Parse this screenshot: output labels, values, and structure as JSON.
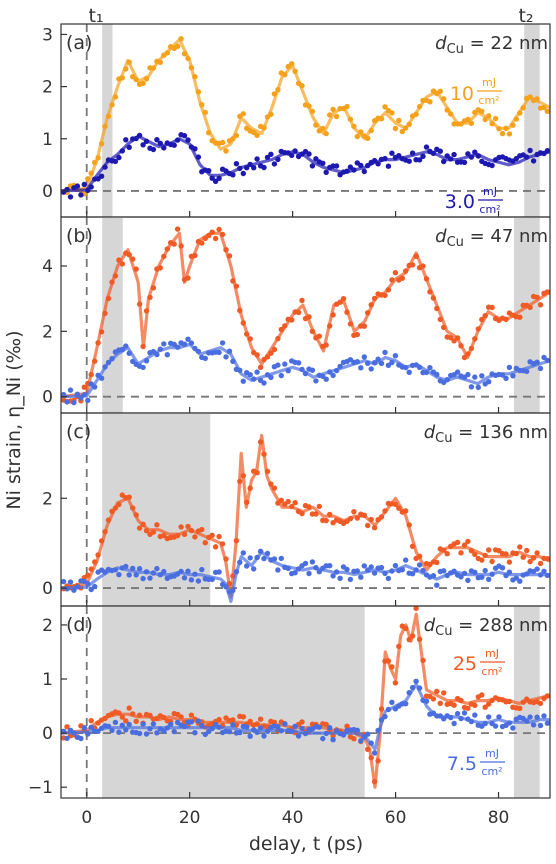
{
  "figure": {
    "xlabel": "delay, t (ps)",
    "ylabel": "Ni strain, η_Ni (‰)",
    "marker_t1": "t₁",
    "marker_t2": "t₂",
    "xlim": [
      -5,
      90
    ],
    "xticks": [
      0,
      20,
      40,
      60,
      80
    ]
  },
  "chart_data": [
    {
      "type": "line",
      "label": "(a)",
      "thickness": "d_Cu = 22 nm",
      "ylim": [
        -0.5,
        3.2
      ],
      "yticks": [
        0,
        1,
        2,
        3
      ],
      "shaded": [
        [
          3,
          5
        ],
        [
          85,
          88
        ]
      ],
      "series": [
        {
          "fluence_value": "10",
          "fluence_unit_num": "mJ",
          "fluence_unit_den": "cm²",
          "color": "#f5a11c",
          "x": [
            -5,
            0,
            2,
            4,
            6,
            8,
            10,
            12,
            14,
            16,
            18,
            20,
            22,
            24,
            26,
            28,
            30,
            32,
            34,
            36,
            38,
            40,
            42,
            44,
            46,
            48,
            50,
            52,
            54,
            56,
            58,
            60,
            62,
            64,
            66,
            68,
            70,
            72,
            74,
            76,
            78,
            80,
            82,
            84,
            86,
            88,
            90
          ],
          "y": [
            0,
            0.05,
            0.6,
            1.4,
            2.0,
            2.5,
            2.1,
            2.2,
            2.5,
            2.7,
            2.9,
            2.5,
            1.7,
            1.1,
            0.8,
            0.9,
            1.4,
            1.2,
            1.1,
            1.6,
            2.2,
            2.4,
            1.9,
            1.4,
            1.1,
            1.5,
            1.6,
            1.2,
            1.0,
            1.3,
            1.5,
            1.3,
            1.2,
            1.5,
            1.8,
            1.9,
            1.6,
            1.3,
            1.3,
            1.5,
            1.4,
            1.2,
            1.2,
            1.5,
            1.8,
            1.7,
            1.6
          ]
        },
        {
          "fluence_value": "3.0",
          "fluence_unit_num": "mJ",
          "fluence_unit_den": "cm²",
          "color": "#1c18b0",
          "x": [
            -5,
            0,
            2,
            4,
            6,
            8,
            10,
            12,
            14,
            16,
            18,
            20,
            22,
            24,
            26,
            28,
            30,
            32,
            34,
            36,
            38,
            40,
            42,
            44,
            46,
            48,
            50,
            52,
            54,
            56,
            58,
            60,
            62,
            64,
            66,
            68,
            70,
            72,
            74,
            76,
            78,
            80,
            82,
            84,
            86,
            88,
            90
          ],
          "y": [
            0,
            0.02,
            0.3,
            0.55,
            0.7,
            0.9,
            1.05,
            0.95,
            0.85,
            0.9,
            1.0,
            0.9,
            0.5,
            0.3,
            0.3,
            0.35,
            0.45,
            0.5,
            0.55,
            0.6,
            0.7,
            0.75,
            0.7,
            0.55,
            0.45,
            0.4,
            0.35,
            0.4,
            0.45,
            0.55,
            0.6,
            0.6,
            0.65,
            0.7,
            0.75,
            0.7,
            0.6,
            0.6,
            0.65,
            0.7,
            0.6,
            0.55,
            0.5,
            0.55,
            0.65,
            0.7,
            0.75
          ]
        }
      ]
    },
    {
      "type": "line",
      "label": "(b)",
      "thickness": "d_Cu = 47 nm",
      "ylim": [
        -0.5,
        5.5
      ],
      "yticks": [
        0,
        2,
        4
      ],
      "shaded": [
        [
          3,
          7
        ],
        [
          83,
          88
        ]
      ],
      "series": [
        {
          "color": "#f05a24",
          "x": [
            -5,
            0,
            2,
            4,
            6,
            8,
            10,
            11,
            12,
            14,
            16,
            18,
            19,
            20,
            22,
            24,
            26,
            28,
            30,
            32,
            34,
            36,
            38,
            40,
            42,
            44,
            46,
            48,
            50,
            52,
            54,
            56,
            58,
            60,
            62,
            64,
            66,
            68,
            70,
            72,
            74,
            76,
            78,
            80,
            82,
            84,
            86,
            88,
            90
          ],
          "y": [
            0,
            0.1,
            1.5,
            3.0,
            4.0,
            4.5,
            3.5,
            1.5,
            3.0,
            4.0,
            4.6,
            5.0,
            3.5,
            4.0,
            4.8,
            5.0,
            5.0,
            4.0,
            2.5,
            1.5,
            1.0,
            1.5,
            2.0,
            2.5,
            2.8,
            2.0,
            1.4,
            2.8,
            2.9,
            2.0,
            2.3,
            3.0,
            3.2,
            3.6,
            3.8,
            4.4,
            3.6,
            2.8,
            2.0,
            1.8,
            1.2,
            2.0,
            2.6,
            2.4,
            2.4,
            2.6,
            2.8,
            3.0,
            3.2
          ]
        },
        {
          "color": "#4a6ee0",
          "x": [
            -5,
            0,
            2,
            4,
            6,
            8,
            10,
            12,
            14,
            16,
            18,
            20,
            22,
            24,
            26,
            28,
            30,
            32,
            34,
            36,
            38,
            40,
            42,
            44,
            46,
            48,
            50,
            52,
            54,
            56,
            58,
            60,
            62,
            64,
            66,
            68,
            70,
            72,
            74,
            76,
            78,
            80,
            82,
            84,
            86,
            88,
            90
          ],
          "y": [
            0,
            0.02,
            0.5,
            1.0,
            1.3,
            1.5,
            1.0,
            1.2,
            1.4,
            1.5,
            1.5,
            1.6,
            1.3,
            1.4,
            1.5,
            1.3,
            0.7,
            0.5,
            0.6,
            0.7,
            0.8,
            0.9,
            0.8,
            0.6,
            0.7,
            0.8,
            0.9,
            1.0,
            1.1,
            1.0,
            1.2,
            1.1,
            0.9,
            1.0,
            0.8,
            0.6,
            0.5,
            0.6,
            0.5,
            0.4,
            0.6,
            0.7,
            0.7,
            0.8,
            0.9,
            1.0,
            1.1
          ]
        }
      ]
    },
    {
      "type": "line",
      "label": "(c)",
      "thickness": "d_Cu = 136 nm",
      "ylim": [
        -0.4,
        3.9
      ],
      "yticks": [
        0,
        2
      ],
      "shaded": [
        [
          3,
          24
        ]
      ],
      "series": [
        {
          "color": "#f05a24",
          "x": [
            -5,
            0,
            2,
            4,
            6,
            8,
            10,
            12,
            14,
            16,
            18,
            20,
            22,
            24,
            26,
            27,
            28,
            29,
            30,
            31,
            32,
            33,
            34,
            35,
            36,
            38,
            40,
            42,
            44,
            46,
            48,
            50,
            52,
            54,
            56,
            58,
            60,
            62,
            64,
            66,
            68,
            70,
            72,
            74,
            76,
            78,
            80,
            82,
            84,
            86,
            88,
            90
          ],
          "y": [
            0,
            0.1,
            0.6,
            1.4,
            1.9,
            2.0,
            1.5,
            1.3,
            1.3,
            1.2,
            1.2,
            1.3,
            1.2,
            1.1,
            1.0,
            0.6,
            -0.2,
            1.0,
            3.0,
            1.8,
            2.4,
            2.6,
            3.4,
            2.5,
            2.2,
            1.8,
            1.8,
            1.7,
            1.8,
            1.6,
            1.6,
            1.5,
            1.6,
            1.6,
            1.4,
            1.7,
            2.0,
            1.6,
            0.8,
            0.4,
            0.7,
            0.9,
            0.9,
            0.9,
            0.8,
            0.7,
            0.7,
            0.7,
            0.8,
            0.7,
            0.7,
            0.6
          ]
        },
        {
          "color": "#4a6ee0",
          "x": [
            -5,
            0,
            2,
            4,
            6,
            8,
            10,
            12,
            14,
            16,
            18,
            20,
            22,
            24,
            26,
            27,
            28,
            29,
            30,
            32,
            34,
            36,
            38,
            40,
            42,
            44,
            46,
            48,
            50,
            52,
            54,
            56,
            58,
            60,
            62,
            64,
            66,
            68,
            70,
            72,
            74,
            76,
            78,
            80,
            82,
            84,
            86,
            88,
            90
          ],
          "y": [
            0,
            0.02,
            0.2,
            0.35,
            0.45,
            0.4,
            0.35,
            0.35,
            0.3,
            0.3,
            0.35,
            0.3,
            0.3,
            0.25,
            0.2,
            0.1,
            -0.3,
            0.3,
            0.7,
            0.5,
            0.8,
            0.6,
            0.5,
            0.45,
            0.4,
            0.45,
            0.4,
            0.35,
            0.35,
            0.3,
            0.35,
            0.4,
            0.35,
            0.4,
            0.5,
            0.4,
            0.3,
            0.2,
            0.3,
            0.35,
            0.3,
            0.3,
            0.3,
            0.35,
            0.3,
            0.3,
            0.3,
            0.3,
            0.3
          ]
        }
      ]
    },
    {
      "type": "line",
      "label": "(d)",
      "thickness": "d_Cu = 288 nm",
      "ylim": [
        -1.2,
        2.35
      ],
      "yticks": [
        -1,
        0,
        1,
        2
      ],
      "shaded": [
        [
          3,
          54
        ],
        [
          83,
          88
        ]
      ],
      "series": [
        {
          "fluence_value": "25",
          "fluence_unit_num": "mJ",
          "fluence_unit_den": "cm²",
          "color": "#f05a24",
          "x": [
            -5,
            0,
            2,
            4,
            6,
            8,
            10,
            12,
            14,
            16,
            18,
            20,
            22,
            24,
            26,
            28,
            30,
            32,
            34,
            36,
            38,
            40,
            42,
            44,
            46,
            48,
            50,
            52,
            54,
            55,
            56,
            57,
            58,
            59,
            60,
            61,
            62,
            63,
            64,
            65,
            66,
            68,
            70,
            72,
            74,
            76,
            78,
            80,
            82,
            84,
            86,
            88,
            90
          ],
          "y": [
            0,
            0.05,
            0.2,
            0.3,
            0.35,
            0.35,
            0.3,
            0.3,
            0.25,
            0.3,
            0.25,
            0.25,
            0.2,
            0.2,
            0.2,
            0.2,
            0.2,
            0.15,
            0.15,
            0.15,
            0.15,
            0.1,
            0.1,
            0.1,
            0.1,
            0.05,
            0.05,
            0.0,
            -0.1,
            -0.3,
            -1.0,
            0.0,
            1.5,
            1.2,
            1.0,
            1.8,
            2.0,
            1.7,
            2.2,
            1.5,
            0.8,
            0.7,
            0.6,
            0.6,
            0.55,
            0.6,
            0.6,
            0.65,
            0.6,
            0.55,
            0.6,
            0.65,
            0.7
          ]
        },
        {
          "fluence_value": "7.5",
          "fluence_unit_num": "mJ",
          "fluence_unit_den": "cm²",
          "color": "#4a6ee0",
          "x": [
            -5,
            0,
            2,
            4,
            6,
            8,
            10,
            12,
            14,
            16,
            18,
            20,
            22,
            24,
            26,
            28,
            30,
            32,
            34,
            36,
            38,
            40,
            42,
            44,
            46,
            48,
            50,
            52,
            54,
            56,
            57,
            58,
            60,
            62,
            64,
            66,
            68,
            70,
            72,
            74,
            76,
            78,
            80,
            82,
            84,
            86,
            88,
            90
          ],
          "y": [
            0,
            0.02,
            0.05,
            0.1,
            0.1,
            0.1,
            0.1,
            0.1,
            0.1,
            0.1,
            0.1,
            0.1,
            0.1,
            0.1,
            0.1,
            0.1,
            0.05,
            0.05,
            0.05,
            0.05,
            0.05,
            0.05,
            0.0,
            0.0,
            0.0,
            0.0,
            0.0,
            0.0,
            -0.05,
            -0.3,
            0.1,
            0.4,
            0.5,
            0.6,
            0.9,
            0.5,
            0.3,
            0.3,
            0.3,
            0.25,
            0.2,
            0.2,
            0.25,
            0.2,
            0.2,
            0.2,
            0.25,
            0.25
          ]
        }
      ]
    }
  ]
}
